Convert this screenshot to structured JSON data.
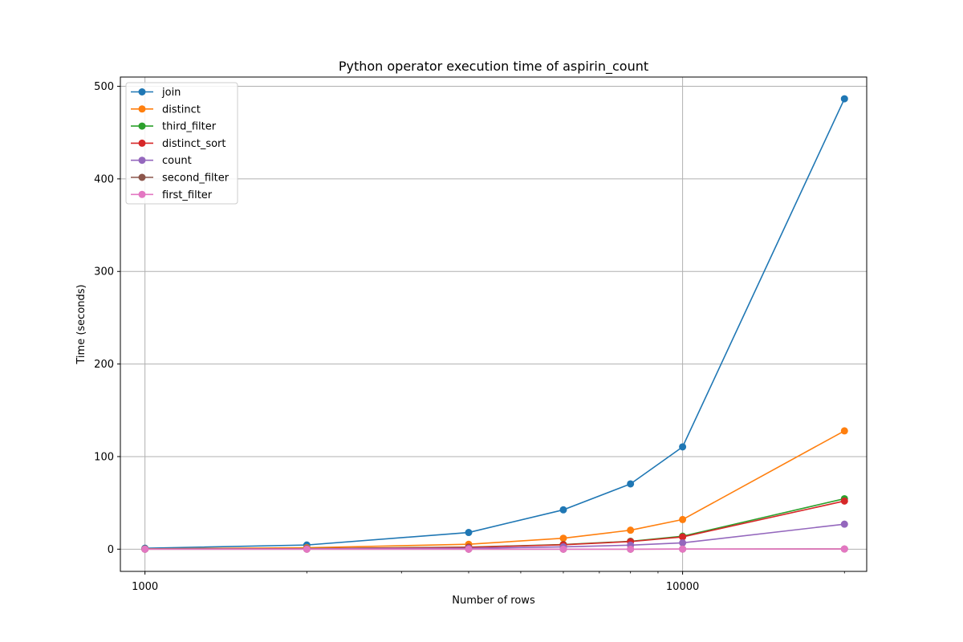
{
  "chart_data": {
    "type": "line",
    "title": "Python operator execution time of aspirin_count",
    "xlabel": "Number of rows",
    "ylabel": "Time (seconds)",
    "x_scale": "log",
    "x": [
      1000,
      2000,
      4000,
      6000,
      8000,
      10000,
      20000
    ],
    "x_ticks": [
      1000,
      10000
    ],
    "x_tick_labels": [
      "1000",
      "10000"
    ],
    "xlim": [
      900,
      22000
    ],
    "y_ticks": [
      0,
      100,
      200,
      300,
      400,
      500
    ],
    "y_tick_labels": [
      "0",
      "100",
      "200",
      "300",
      "400",
      "500"
    ],
    "ylim": [
      -24,
      510
    ],
    "grid": true,
    "legend_position": "top-left",
    "marker": "circle",
    "series": [
      {
        "name": "join",
        "color": "#1f77b4",
        "values": [
          1.0,
          4.5,
          18.0,
          42.5,
          70.5,
          110.5,
          486.5
        ]
      },
      {
        "name": "distinct",
        "color": "#ff7f0e",
        "values": [
          0.3,
          1.5,
          5.3,
          11.8,
          20.5,
          32.0,
          127.8
        ]
      },
      {
        "name": "third_filter",
        "color": "#2ca02c",
        "values": [
          0.1,
          0.6,
          2.2,
          5.0,
          8.5,
          14.0,
          54.5
        ]
      },
      {
        "name": "distinct_sort",
        "color": "#d62728",
        "values": [
          0.1,
          0.5,
          2.0,
          4.8,
          8.2,
          13.2,
          52.0
        ]
      },
      {
        "name": "count",
        "color": "#9467bd",
        "values": [
          0.1,
          0.3,
          1.0,
          2.5,
          4.3,
          6.8,
          27.0
        ]
      },
      {
        "name": "second_filter",
        "color": "#8c564b",
        "values": [
          0.0,
          0.0,
          0.0,
          0.0,
          0.0,
          0.1,
          0.2
        ]
      },
      {
        "name": "first_filter",
        "color": "#e377c2",
        "values": [
          0.0,
          0.0,
          0.0,
          0.0,
          0.0,
          0.1,
          0.2
        ]
      }
    ]
  }
}
